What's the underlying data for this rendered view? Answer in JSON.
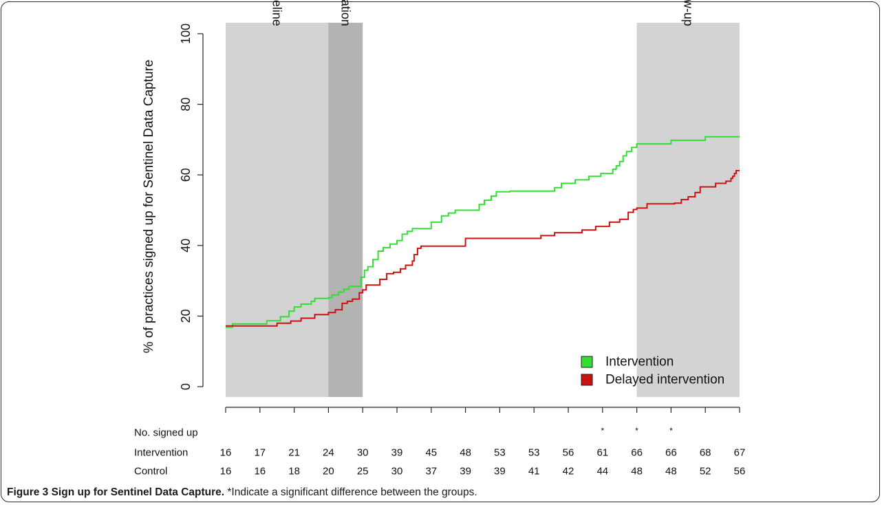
{
  "chart_data": {
    "type": "line",
    "ylabel": "% of practices signed up for Sentinel Data Capture",
    "xlabel": "",
    "ylim": [
      0,
      100
    ],
    "y_ticks": [
      0,
      20,
      40,
      60,
      80,
      100
    ],
    "grid": false,
    "legend_position": "bottom-right",
    "phases": [
      {
        "label": "Baseline",
        "start": 0,
        "end": 3,
        "color": "#d3d3d3"
      },
      {
        "label": "Randomisation",
        "start": 3,
        "end": 4,
        "color": "#b3b3b3"
      },
      {
        "label": "Follow-up",
        "start": 12,
        "end": 15,
        "color": "#d3d3d3"
      }
    ],
    "table": {
      "header": "No. signed up",
      "significance": [
        "",
        "",
        "",
        "",
        "",
        "",
        "",
        "",
        "",
        "",
        "",
        "*",
        "*",
        "*",
        "",
        ""
      ],
      "rows": [
        {
          "label": "Intervention",
          "values": [
            "16",
            "17",
            "21",
            "24",
            "30",
            "39",
            "45",
            "48",
            "53",
            "53",
            "56",
            "61",
            "66",
            "66",
            "68",
            "67"
          ]
        },
        {
          "label": "Control",
          "values": [
            "16",
            "16",
            "18",
            "20",
            "25",
            "30",
            "37",
            "39",
            "39",
            "41",
            "42",
            "44",
            "48",
            "48",
            "52",
            "56"
          ]
        }
      ]
    },
    "series": [
      {
        "name": "Intervention",
        "color": "#33dd33",
        "points": [
          [
            0,
            16.8
          ],
          [
            0.2,
            17.8
          ],
          [
            1.2,
            18.7
          ],
          [
            1.6,
            19.8
          ],
          [
            1.85,
            21.4
          ],
          [
            2.0,
            22.6
          ],
          [
            2.2,
            23.4
          ],
          [
            2.5,
            24.2
          ],
          [
            2.6,
            25.0
          ],
          [
            3.0,
            25.2
          ],
          [
            3.1,
            26.0
          ],
          [
            3.3,
            26.8
          ],
          [
            3.45,
            27.6
          ],
          [
            3.6,
            28.4
          ],
          [
            3.95,
            31.0
          ],
          [
            4.05,
            33.0
          ],
          [
            4.15,
            34.0
          ],
          [
            4.3,
            36.0
          ],
          [
            4.45,
            38.4
          ],
          [
            4.6,
            39.4
          ],
          [
            4.8,
            40.4
          ],
          [
            5.0,
            41.4
          ],
          [
            5.15,
            43.2
          ],
          [
            5.3,
            44.0
          ],
          [
            5.45,
            44.8
          ],
          [
            6.0,
            46.6
          ],
          [
            6.3,
            48.4
          ],
          [
            6.5,
            49.2
          ],
          [
            6.7,
            50.0
          ],
          [
            7.4,
            51.6
          ],
          [
            7.55,
            52.8
          ],
          [
            7.75,
            54.0
          ],
          [
            7.9,
            55.2
          ],
          [
            8.3,
            55.4
          ],
          [
            9.6,
            56.4
          ],
          [
            9.8,
            57.6
          ],
          [
            10.2,
            58.6
          ],
          [
            10.6,
            59.6
          ],
          [
            10.95,
            60.4
          ],
          [
            11.3,
            61.6
          ],
          [
            11.4,
            62.6
          ],
          [
            11.5,
            63.8
          ],
          [
            11.6,
            65.4
          ],
          [
            11.7,
            66.6
          ],
          [
            11.85,
            67.8
          ],
          [
            12.0,
            68.8
          ],
          [
            13.0,
            69.8
          ],
          [
            14.0,
            70.8
          ],
          [
            15.0,
            70.8
          ]
        ]
      },
      {
        "name": "Delayed intervention",
        "color": "#cc1111",
        "points": [
          [
            0,
            17.2
          ],
          [
            1.5,
            18.0
          ],
          [
            1.9,
            18.6
          ],
          [
            2.2,
            19.4
          ],
          [
            2.6,
            20.4
          ],
          [
            3.0,
            21.0
          ],
          [
            3.2,
            21.8
          ],
          [
            3.4,
            23.6
          ],
          [
            3.55,
            24.2
          ],
          [
            3.7,
            24.8
          ],
          [
            3.9,
            26.6
          ],
          [
            4.0,
            27.4
          ],
          [
            4.1,
            28.8
          ],
          [
            4.5,
            30.4
          ],
          [
            4.7,
            32.0
          ],
          [
            4.9,
            32.4
          ],
          [
            5.1,
            33.4
          ],
          [
            5.25,
            34.4
          ],
          [
            5.45,
            35.6
          ],
          [
            5.5,
            37.4
          ],
          [
            5.6,
            39.2
          ],
          [
            5.7,
            39.8
          ],
          [
            7.0,
            42.0
          ],
          [
            9.2,
            42.8
          ],
          [
            9.6,
            43.6
          ],
          [
            10.4,
            44.4
          ],
          [
            10.8,
            45.4
          ],
          [
            11.2,
            46.6
          ],
          [
            11.5,
            47.4
          ],
          [
            11.75,
            49.4
          ],
          [
            11.9,
            50.2
          ],
          [
            12.0,
            50.6
          ],
          [
            12.3,
            51.8
          ],
          [
            12.4,
            51.8
          ],
          [
            13.1,
            52.0
          ],
          [
            13.3,
            53.0
          ],
          [
            13.5,
            53.8
          ],
          [
            13.7,
            55.0
          ],
          [
            13.85,
            56.6
          ],
          [
            14.3,
            57.6
          ],
          [
            14.6,
            58.2
          ],
          [
            14.75,
            59.0
          ],
          [
            14.8,
            59.6
          ],
          [
            14.85,
            60.4
          ],
          [
            14.9,
            61.2
          ],
          [
            15.0,
            61.2
          ]
        ]
      }
    ]
  },
  "caption": {
    "bold": "Figure 3 Sign up for Sentinel Data Capture.",
    "text": " *Indicate a significant difference between the groups."
  }
}
